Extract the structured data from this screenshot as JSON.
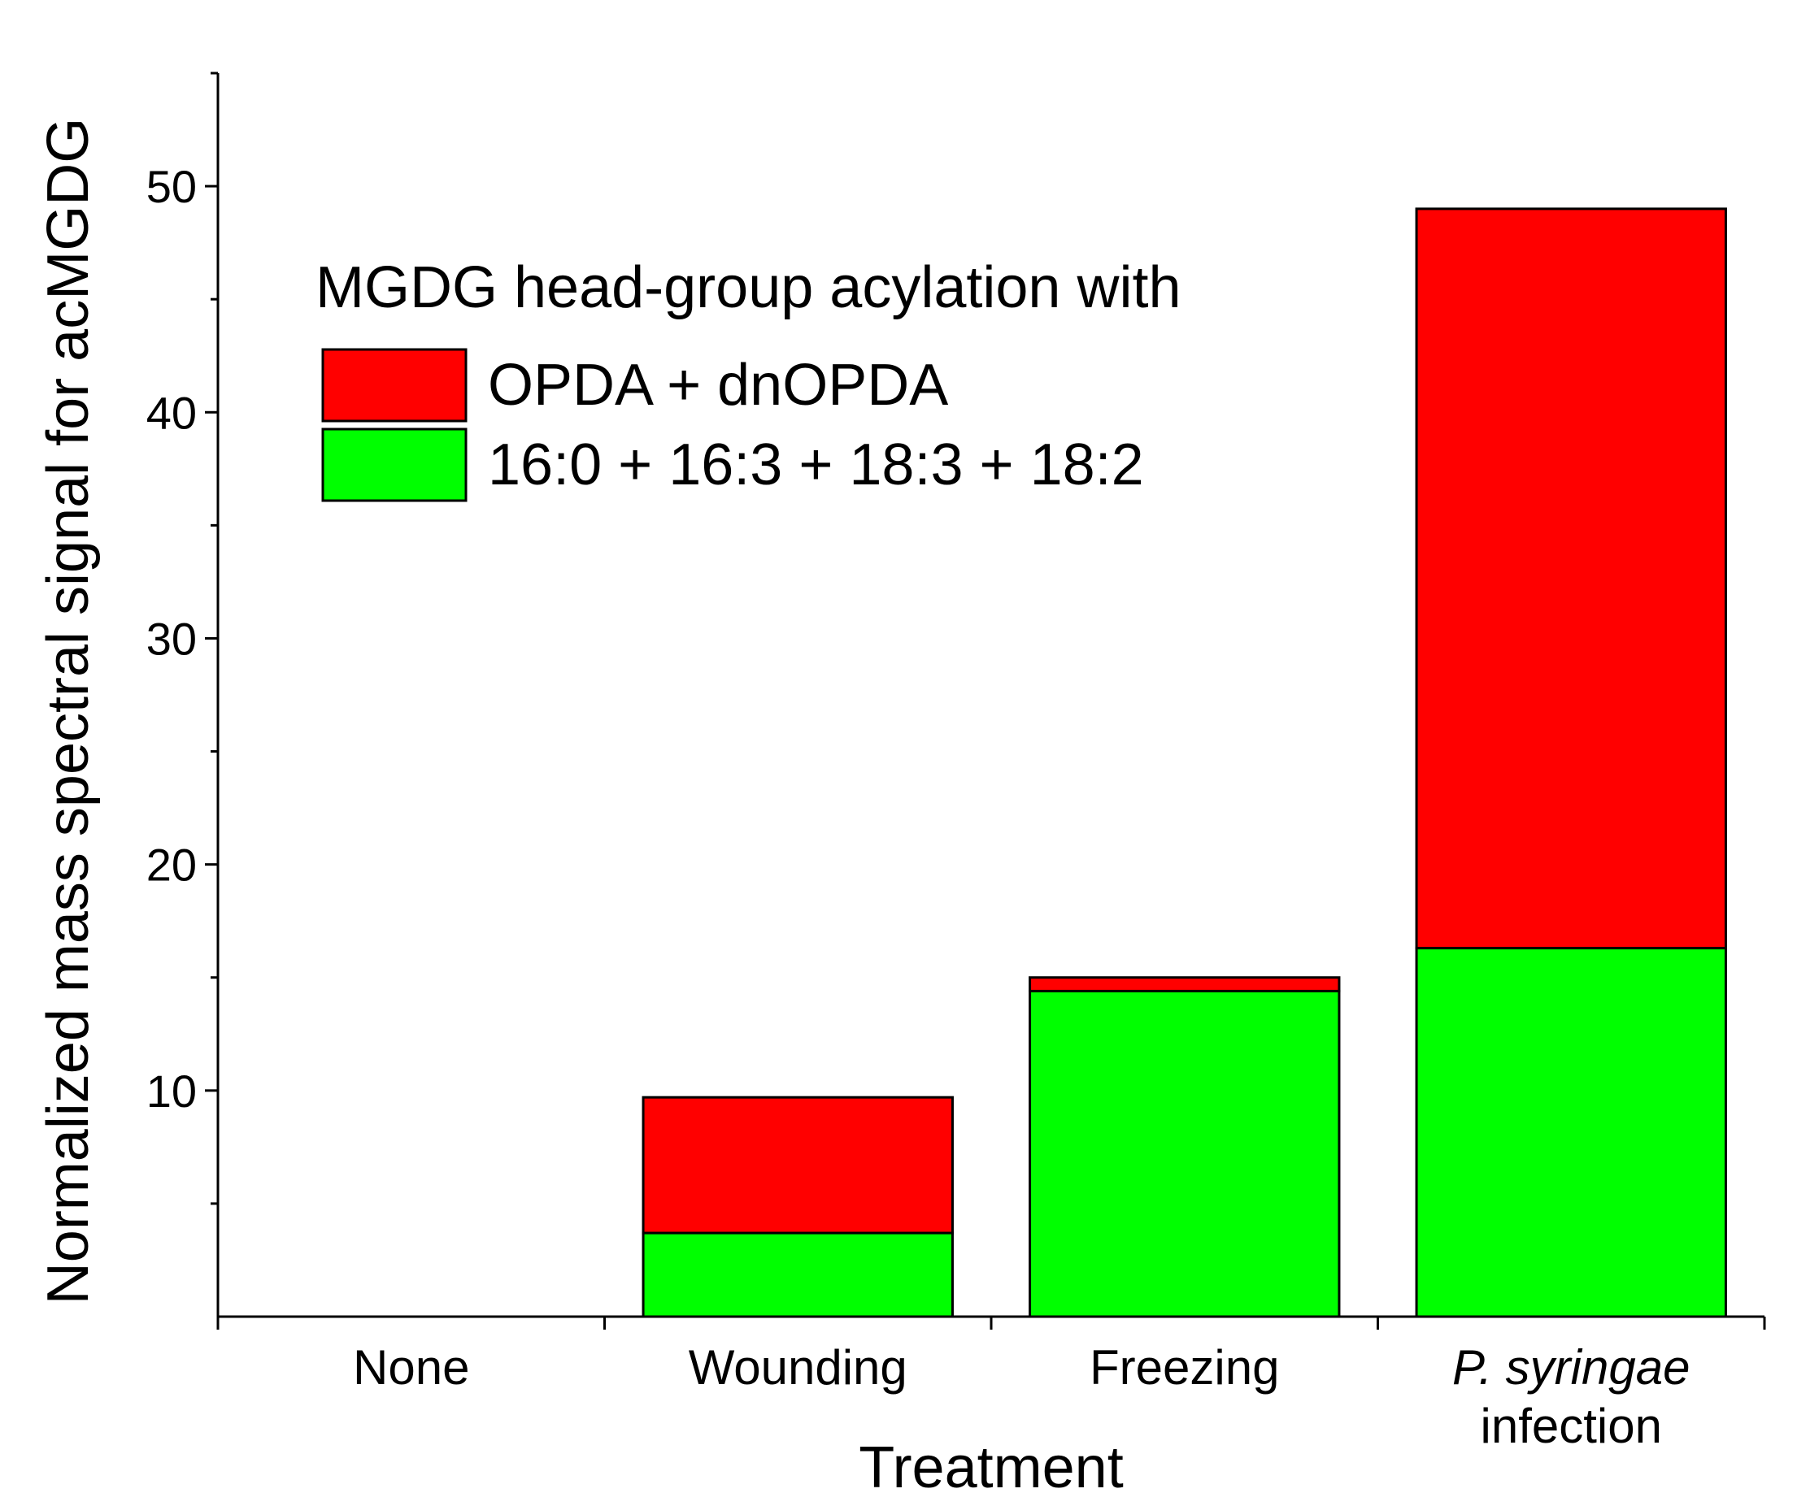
{
  "chart_data": {
    "type": "bar",
    "stacked": true,
    "title": "",
    "xlabel": "Treatment",
    "ylabel": "Normalized mass spectral signal for acMGDG",
    "ylim": [
      0,
      55
    ],
    "yticks": [
      10,
      20,
      30,
      40,
      50
    ],
    "categories": [
      {
        "line1": "None",
        "line2": "",
        "line1_italic": false
      },
      {
        "line1": "Wounding",
        "line2": "",
        "line1_italic": false
      },
      {
        "line1": "Freezing",
        "line2": "",
        "line1_italic": false
      },
      {
        "line1": "P. syringae",
        "line2": "infection",
        "line1_italic": true
      }
    ],
    "series": [
      {
        "name": "16:0 + 16:3 + 18:3 + 18:2",
        "color": "#00ff00",
        "values": [
          0,
          3.7,
          14.4,
          16.3
        ]
      },
      {
        "name": "OPDA + dnOPDA",
        "color": "#ff0000",
        "values": [
          0,
          6.0,
          0.6,
          32.7
        ]
      }
    ],
    "legend": {
      "title": "MGDG head-group acylation with",
      "placement": "top-left",
      "order": [
        "OPDA + dnOPDA",
        "16:0 + 16:3 + 18:3 + 18:2"
      ]
    },
    "grid": false
  }
}
